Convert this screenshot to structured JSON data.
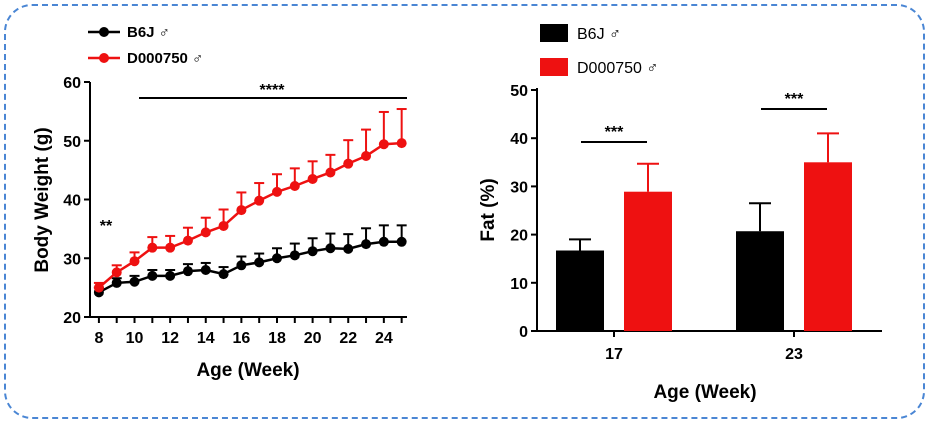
{
  "chart_data": [
    {
      "type": "line",
      "xlabel": "Age (Week)",
      "ylabel": "Body Weight (g)",
      "xlim": [
        7.5,
        25.3
      ],
      "ylim": [
        20,
        60
      ],
      "x_ticks": [
        "8",
        "10",
        "12",
        "14",
        "16",
        "18",
        "20",
        "22",
        "24"
      ],
      "y_ticks": [
        "20",
        "30",
        "40",
        "50",
        "60"
      ],
      "x": [
        8,
        9,
        10,
        11,
        12,
        13,
        14,
        15,
        16,
        17,
        18,
        19,
        20,
        21,
        22,
        23,
        24,
        25
      ],
      "series": [
        {
          "name": "B6J ♂",
          "color": "#000000",
          "values": [
            24.2,
            25.8,
            26.0,
            27.0,
            27.0,
            27.8,
            28.0,
            27.3,
            28.8,
            29.3,
            30.0,
            30.5,
            31.2,
            31.7,
            31.6,
            32.4,
            32.8,
            32.8
          ],
          "errors": [
            0.8,
            0.8,
            1.0,
            1.0,
            1.0,
            1.2,
            1.2,
            1.2,
            1.5,
            1.5,
            1.7,
            2.0,
            2.2,
            2.5,
            2.5,
            2.7,
            2.8,
            2.8
          ]
        },
        {
          "name": "D000750 ♂",
          "color": "#ee1111",
          "values": [
            25.0,
            27.6,
            29.5,
            31.8,
            31.8,
            33.0,
            34.4,
            35.5,
            38.2,
            39.8,
            41.3,
            42.3,
            43.5,
            44.6,
            46.1,
            47.4,
            49.4,
            49.6
          ],
          "errors": [
            0.8,
            1.2,
            1.5,
            1.8,
            2.0,
            2.2,
            2.5,
            2.8,
            3.0,
            3.0,
            3.0,
            3.0,
            3.0,
            3.0,
            4.0,
            4.5,
            5.5,
            5.8
          ]
        }
      ],
      "annotations": [
        {
          "text": "**",
          "x": 8
        },
        {
          "text": "****",
          "x_range": [
            10,
            25
          ]
        }
      ],
      "legend": "top-left"
    },
    {
      "type": "bar",
      "xlabel": "Age (Week)",
      "ylabel": "Fat (%)",
      "categories": [
        "17",
        "23"
      ],
      "ylim": [
        0,
        50
      ],
      "y_ticks": [
        "0",
        "10",
        "20",
        "30",
        "40",
        "50"
      ],
      "series": [
        {
          "name": "B6J ♂",
          "color": "#000000",
          "values": [
            16.7,
            20.7
          ],
          "errors": [
            2.3,
            5.8
          ]
        },
        {
          "name": "D000750 ♂",
          "color": "#ee1111",
          "values": [
            28.9,
            35.0
          ],
          "errors": [
            5.8,
            6.0
          ]
        }
      ],
      "annotations": [
        {
          "text": "***",
          "category": "17"
        },
        {
          "text": "***",
          "category": "23"
        }
      ],
      "legend": "top-left"
    }
  ]
}
